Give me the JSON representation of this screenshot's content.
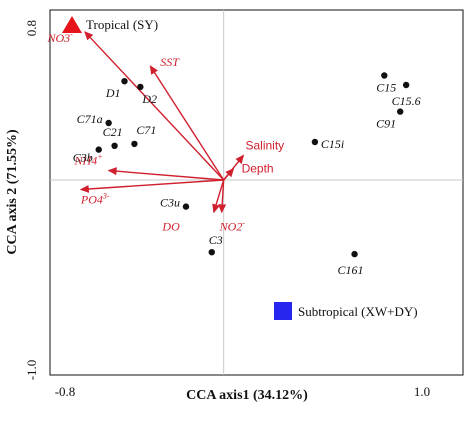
{
  "chart_data": {
    "type": "scatter",
    "title": "",
    "xlabel": "CCA axis1 (34.12%)",
    "ylabel": "CCA axis 2 (71.55%)",
    "xlim": [
      -0.8,
      1.0
    ],
    "ylim": [
      -1.0,
      0.8
    ],
    "x_tick_labels": [
      "-0.8",
      "1.0"
    ],
    "y_tick_labels": [
      "0.8",
      "-1.0"
    ],
    "grid": false,
    "reference_lines": [
      {
        "axis": "x",
        "value": 0
      },
      {
        "axis": "y",
        "value": 0
      }
    ],
    "legend": [
      {
        "label": "Tropical (SY)",
        "marker": "triangle",
        "color": "#e8141b",
        "placement": "top-left"
      },
      {
        "label": "Subtropical (XW+DY)",
        "marker": "square",
        "color": "#2626f0",
        "placement": "bottom-right"
      }
    ],
    "sites": [
      {
        "label": "D1",
        "x": -0.5,
        "y": 0.52
      },
      {
        "label": "D2",
        "x": -0.42,
        "y": 0.49
      },
      {
        "label": "C71a",
        "x": -0.58,
        "y": 0.3
      },
      {
        "label": "C21",
        "x": -0.55,
        "y": 0.18
      },
      {
        "label": "C71",
        "x": -0.45,
        "y": 0.19
      },
      {
        "label": "C3b",
        "x": -0.63,
        "y": 0.16
      },
      {
        "label": "C3u",
        "x": -0.19,
        "y": -0.14
      },
      {
        "label": "C3",
        "x": -0.06,
        "y": -0.38
      },
      {
        "label": "C15i",
        "x": 0.46,
        "y": 0.2
      },
      {
        "label": "C15",
        "x": 0.81,
        "y": 0.55
      },
      {
        "label": "C15.6",
        "x": 0.92,
        "y": 0.5
      },
      {
        "label": "C91",
        "x": 0.89,
        "y": 0.36
      },
      {
        "label": "C161",
        "x": 0.66,
        "y": -0.39
      }
    ],
    "env_vectors": [
      {
        "label": "NO3",
        "sup": "-",
        "x": -0.7,
        "y": 0.78
      },
      {
        "label": "SST",
        "x": -0.37,
        "y": 0.6
      },
      {
        "label": "NH4",
        "sup": "+",
        "x": -0.58,
        "y": 0.05
      },
      {
        "label": "PO4",
        "sup": "3-",
        "x": -0.72,
        "y": -0.05
      },
      {
        "label": "DO",
        "x": -0.05,
        "y": -0.17
      },
      {
        "label": "NO2",
        "sup": "-",
        "x": -0.01,
        "y": -0.17
      },
      {
        "label": "Salinity",
        "x": 0.1,
        "y": 0.13
      },
      {
        "label": "Depth",
        "x": 0.05,
        "y": 0.06
      }
    ],
    "colors": {
      "arrow": "#d0202e",
      "point": "#111111",
      "reference_line": "#c8c8c8",
      "frame": "#111111"
    }
  }
}
